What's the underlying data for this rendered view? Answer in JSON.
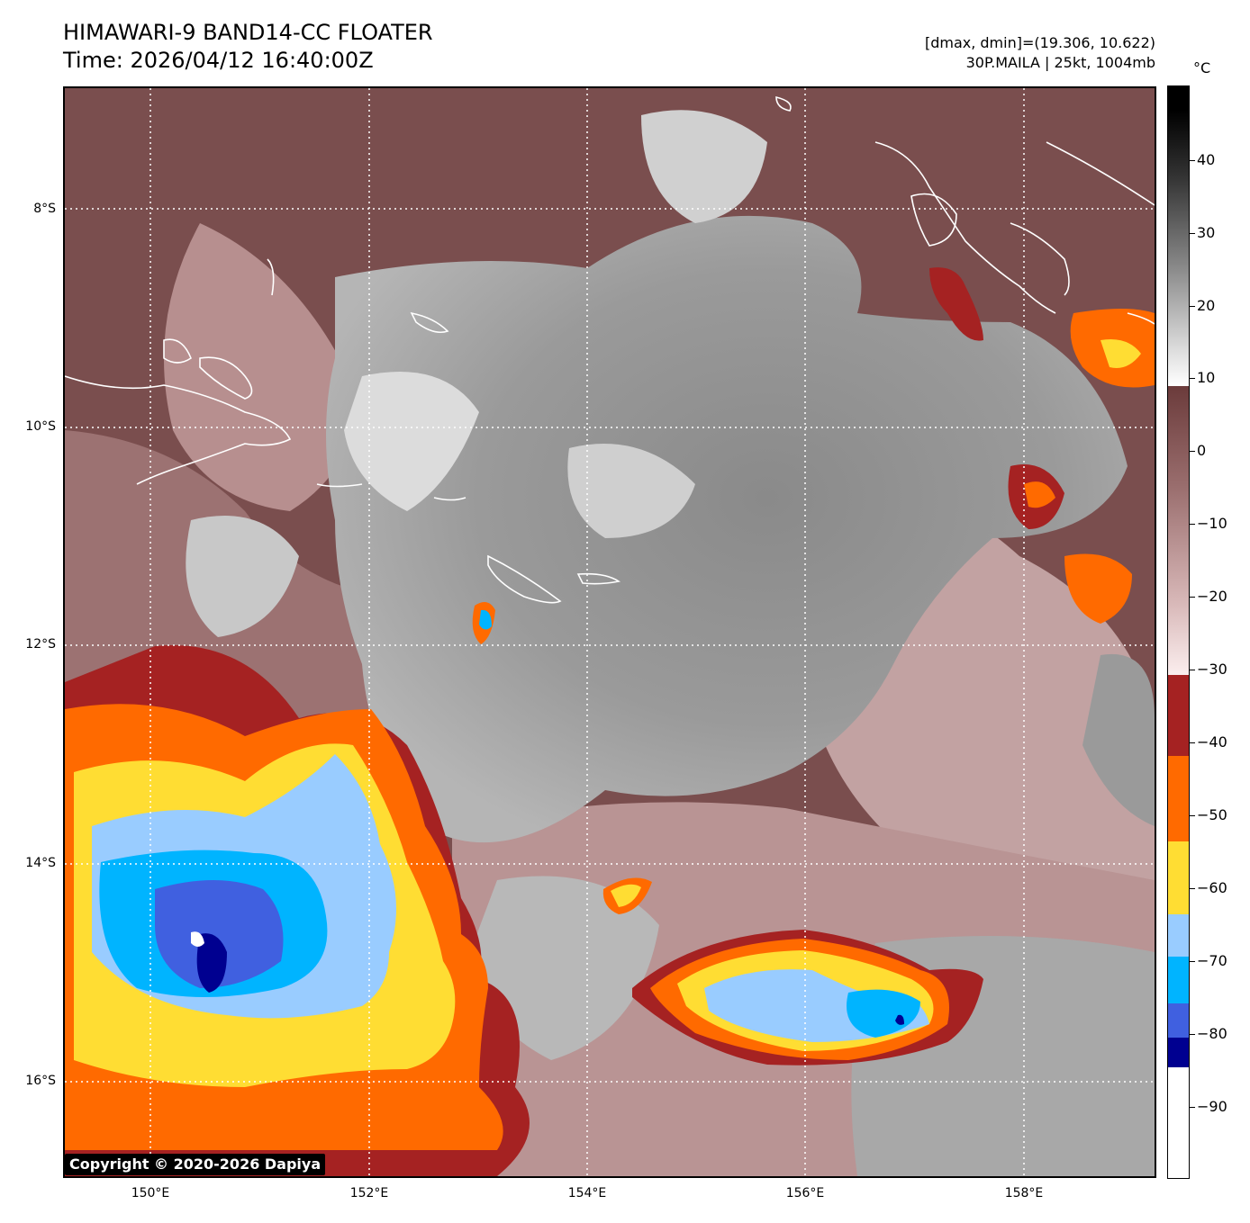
{
  "header": {
    "title_line1": "HIMAWARI-9 BAND14-CC FLOATER",
    "title_line2": "Time: 2026/04/12 16:40:00Z",
    "meta_line1": "[dmax, dmin]=(19.306, 10.622)",
    "meta_line2": "30P.MAILA | 25kt, 1004mb"
  },
  "map": {
    "lat_ticks": [
      {
        "label": "8°S",
        "value": -8
      },
      {
        "label": "10°S",
        "value": -10
      },
      {
        "label": "12°S",
        "value": -12
      },
      {
        "label": "14°S",
        "value": -14
      },
      {
        "label": "16°S",
        "value": -16
      }
    ],
    "lon_ticks": [
      {
        "label": "150°E",
        "value": 150
      },
      {
        "label": "152°E",
        "value": 152
      },
      {
        "label": "154°E",
        "value": 154
      },
      {
        "label": "156°E",
        "value": 156
      },
      {
        "label": "158°E",
        "value": 158
      }
    ],
    "copyright": "Copyright © 2020-2026 Dapiya"
  },
  "colorbar": {
    "unit": "°C",
    "ticks": [
      "40",
      "30",
      "20",
      "10",
      "0",
      "−10",
      "−20",
      "−30",
      "−40",
      "−50",
      "−60",
      "−70",
      "−80",
      "−90"
    ],
    "colors": {
      "white_warm": "#ffffff",
      "brown": "#6b3b3b",
      "pink": "#f0d4d4",
      "darkred": "#a52222",
      "orange": "#ff6a00",
      "yellow": "#ffdd33",
      "lightblue": "#99ccff",
      "cyan": "#00b4ff",
      "blue": "#4060e0",
      "navy": "#000090",
      "coldwhite": "#ffffff"
    }
  }
}
